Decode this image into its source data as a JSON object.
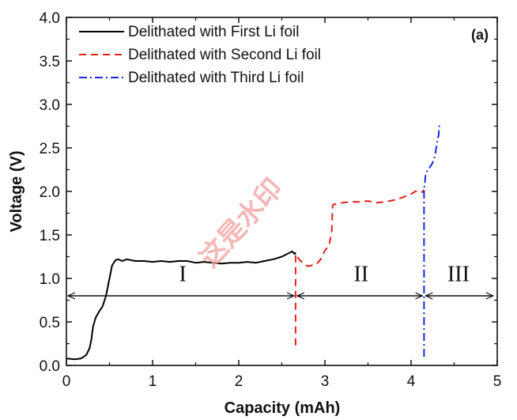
{
  "chart_data": {
    "type": "line",
    "title": "",
    "panel_label": "(a)",
    "xlabel": "Capacity (mAh)",
    "ylabel": "Voltage (V)",
    "xlim": [
      0,
      5
    ],
    "ylim": [
      0,
      4.0
    ],
    "x_ticks": [
      0,
      1,
      2,
      3,
      4,
      5
    ],
    "x_tick_labels": [
      "0",
      "1",
      "2",
      "3",
      "4",
      "5"
    ],
    "y_ticks": [
      0,
      0.5,
      1.0,
      1.5,
      2.0,
      2.5,
      3.0,
      3.5,
      4.0
    ],
    "y_tick_labels": [
      "0.0",
      "0.5",
      "1.0",
      "1.5",
      "2.0",
      "2.5",
      "3.0",
      "3.5",
      "4.0"
    ],
    "legend_position": "top-left",
    "grid": false,
    "series": [
      {
        "name": "Delithated with First Li foil",
        "color": "#000000",
        "dash": "solid",
        "points": [
          [
            0,
            0.08
          ],
          [
            0.1,
            0.07
          ],
          [
            0.17,
            0.08
          ],
          [
            0.23,
            0.12
          ],
          [
            0.27,
            0.2
          ],
          [
            0.29,
            0.3
          ],
          [
            0.31,
            0.45
          ],
          [
            0.34,
            0.55
          ],
          [
            0.38,
            0.62
          ],
          [
            0.42,
            0.68
          ],
          [
            0.46,
            0.8
          ],
          [
            0.5,
            1.0
          ],
          [
            0.53,
            1.15
          ],
          [
            0.57,
            1.21
          ],
          [
            0.6,
            1.22
          ],
          [
            0.65,
            1.2
          ],
          [
            0.7,
            1.22
          ],
          [
            0.8,
            1.2
          ],
          [
            0.9,
            1.2
          ],
          [
            1.0,
            1.19
          ],
          [
            1.1,
            1.2
          ],
          [
            1.2,
            1.19
          ],
          [
            1.3,
            1.2
          ],
          [
            1.4,
            1.2
          ],
          [
            1.5,
            1.18
          ],
          [
            1.6,
            1.19
          ],
          [
            1.7,
            1.18
          ],
          [
            1.8,
            1.17
          ],
          [
            1.9,
            1.18
          ],
          [
            2.0,
            1.18
          ],
          [
            2.1,
            1.19
          ],
          [
            2.2,
            1.18
          ],
          [
            2.3,
            1.2
          ],
          [
            2.4,
            1.22
          ],
          [
            2.5,
            1.25
          ],
          [
            2.58,
            1.29
          ],
          [
            2.62,
            1.31
          ],
          [
            2.65,
            1.28
          ],
          [
            2.66,
            1.3
          ]
        ]
      },
      {
        "name": "Delithated with Second Li foil",
        "color": "#e0201b",
        "dash": "dashed",
        "points": [
          [
            2.66,
            0.23
          ],
          [
            2.66,
            1.28
          ],
          [
            2.7,
            1.22
          ],
          [
            2.75,
            1.17
          ],
          [
            2.8,
            1.14
          ],
          [
            2.85,
            1.15
          ],
          [
            2.9,
            1.16
          ],
          [
            2.95,
            1.22
          ],
          [
            3.0,
            1.32
          ],
          [
            3.05,
            1.38
          ],
          [
            3.08,
            1.55
          ],
          [
            3.09,
            1.84
          ],
          [
            3.1,
            1.85
          ],
          [
            3.2,
            1.87
          ],
          [
            3.3,
            1.88
          ],
          [
            3.4,
            1.88
          ],
          [
            3.5,
            1.89
          ],
          [
            3.6,
            1.87
          ],
          [
            3.7,
            1.88
          ],
          [
            3.8,
            1.9
          ],
          [
            3.9,
            1.93
          ],
          [
            4.0,
            1.97
          ],
          [
            4.05,
            2.0
          ],
          [
            4.1,
            2.01
          ],
          [
            4.13,
            1.99
          ],
          [
            4.15,
            2.02
          ]
        ]
      },
      {
        "name": "Delithated with Third Li foil",
        "color": "#1a2bd8",
        "dash": "dashdot",
        "points": [
          [
            4.15,
            0.1
          ],
          [
            4.15,
            2.02
          ],
          [
            4.16,
            2.1
          ],
          [
            4.17,
            2.2
          ],
          [
            4.19,
            2.24
          ],
          [
            4.22,
            2.28
          ],
          [
            4.25,
            2.33
          ],
          [
            4.28,
            2.42
          ],
          [
            4.3,
            2.55
          ],
          [
            4.32,
            2.65
          ],
          [
            4.33,
            2.78
          ]
        ]
      }
    ],
    "annotations": {
      "y": 0.8,
      "regions": [
        {
          "label": "I",
          "x_start": 0,
          "x_end": 2.66,
          "label_x": 1.35,
          "label_y": 0.97
        },
        {
          "label": "II",
          "x_start": 2.66,
          "x_end": 4.15,
          "label_x": 3.42,
          "label_y": 0.97
        },
        {
          "label": "III",
          "x_start": 4.15,
          "x_end": 4.97,
          "label_x": 4.55,
          "label_y": 0.97
        }
      ]
    },
    "watermark": "这是水印"
  }
}
